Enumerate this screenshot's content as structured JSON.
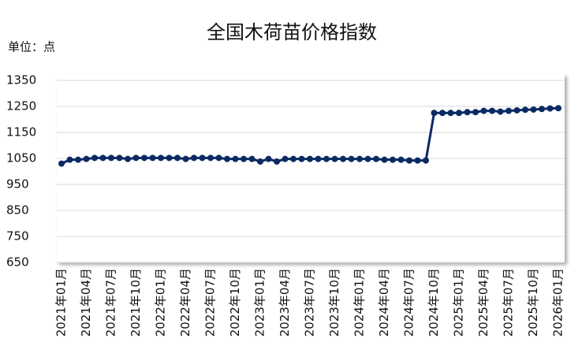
{
  "chart_data": {
    "type": "line",
    "title": "全国木荷苗价格指数",
    "unit_label": "单位：点",
    "categories": [
      "2021年01月",
      null,
      null,
      "2021年04月",
      null,
      null,
      "2021年07月",
      null,
      null,
      "2021年10月",
      null,
      null,
      "2022年01月",
      null,
      null,
      "2022年04月",
      null,
      null,
      "2022年07月",
      null,
      null,
      "2022年10月",
      null,
      null,
      "2023年01月",
      null,
      null,
      "2023年04月",
      null,
      null,
      "2023年07月",
      null,
      null,
      "2023年10月",
      null,
      null,
      "2024年01月",
      null,
      null,
      "2024年04月",
      null,
      null,
      "2024年07月",
      null,
      null,
      "2024年10月",
      null,
      null,
      "2025年01月",
      null,
      null,
      "2025年04月",
      null,
      null,
      "2025年07月",
      null,
      null,
      "2025年10月",
      null,
      null,
      "2026年01月"
    ],
    "series": [
      {
        "color": "#0b2a63",
        "values": [
          1030,
          1045,
          1045,
          1048,
          1052,
          1052,
          1052,
          1052,
          1048,
          1052,
          1052,
          1052,
          1052,
          1052,
          1052,
          1048,
          1052,
          1052,
          1052,
          1052,
          1048,
          1048,
          1048,
          1048,
          1038,
          1048,
          1038,
          1048,
          1048,
          1048,
          1048,
          1048,
          1048,
          1048,
          1048,
          1048,
          1048,
          1048,
          1048,
          1045,
          1045,
          1045,
          1042,
          1042,
          1042,
          1225,
          1225,
          1225,
          1225,
          1228,
          1228,
          1233,
          1233,
          1230,
          1233,
          1235,
          1237,
          1238,
          1240,
          1242,
          1243
        ]
      }
    ],
    "ylim": [
      650,
      1350
    ],
    "yticks": [
      650,
      750,
      850,
      950,
      1050,
      1150,
      1250,
      1350
    ],
    "grid": true
  }
}
